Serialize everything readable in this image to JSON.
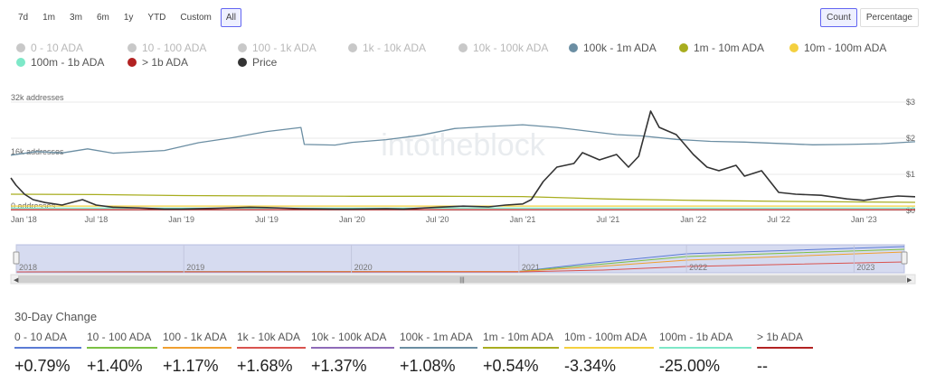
{
  "toolbar": {
    "ranges": [
      "7d",
      "1m",
      "3m",
      "6m",
      "1y",
      "YTD",
      "Custom",
      "All"
    ],
    "active_range": "All",
    "modes": [
      "Count",
      "Percentage"
    ],
    "active_mode": "Count"
  },
  "legend": [
    {
      "label": "0 - 10 ADA",
      "color": "#c8c8c8",
      "active": false
    },
    {
      "label": "10 - 100 ADA",
      "color": "#c8c8c8",
      "active": false
    },
    {
      "label": "100 - 1k ADA",
      "color": "#c8c8c8",
      "active": false
    },
    {
      "label": "1k - 10k ADA",
      "color": "#c8c8c8",
      "active": false
    },
    {
      "label": "10k - 100k ADA",
      "color": "#c8c8c8",
      "active": false
    },
    {
      "label": "100k - 1m ADA",
      "color": "#6b8ea3",
      "active": true
    },
    {
      "label": "1m - 10m ADA",
      "color": "#a8ad1f",
      "active": true
    },
    {
      "label": "10m - 100m ADA",
      "color": "#f4d03f",
      "active": true
    },
    {
      "label": "100m - 1b ADA",
      "color": "#7de8c8",
      "active": true
    },
    {
      "label": "> 1b ADA",
      "color": "#b22222",
      "active": true
    },
    {
      "label": "Price",
      "color": "#333333",
      "active": true
    }
  ],
  "watermark": "intotheblock",
  "chart_data": {
    "type": "line",
    "x_ticks": [
      "Jan '18",
      "Jul '18",
      "Jan '19",
      "Jul '19",
      "Jan '20",
      "Jul '20",
      "Jan '21",
      "Jul '21",
      "Jan '22",
      "Jul '22",
      "Jan '23"
    ],
    "y_left_ticks": [
      "32k addresses",
      "16k addresses",
      "0 addresses"
    ],
    "y_left_range": [
      0,
      32000
    ],
    "y_right_ticks": [
      "$3",
      "$2",
      "$1",
      "$0"
    ],
    "y_right_range": [
      0,
      3
    ],
    "series": [
      {
        "name": "100k - 1m ADA",
        "axis": "left",
        "color": "#6b8ea3",
        "x": [
          2018.0,
          2018.15,
          2018.3,
          2018.45,
          2018.6,
          2018.9,
          2019.1,
          2019.3,
          2019.5,
          2019.7,
          2019.72,
          2019.9,
          2020.0,
          2020.2,
          2020.4,
          2020.6,
          2020.8,
          2021.0,
          2021.2,
          2021.4,
          2021.55,
          2021.7,
          2021.9,
          2022.1,
          2022.3,
          2022.5,
          2022.7,
          2022.9,
          2023.1,
          2023.3
        ],
        "y": [
          16300,
          17400,
          17000,
          18200,
          16900,
          17700,
          20000,
          21500,
          23300,
          24500,
          19500,
          19300,
          20100,
          20900,
          22200,
          24200,
          24800,
          25300,
          24500,
          23300,
          22400,
          22000,
          21000,
          20400,
          20200,
          19800,
          19400,
          19500,
          19700,
          20300
        ]
      },
      {
        "name": "1m - 10m ADA",
        "axis": "left",
        "color": "#a8ad1f",
        "x": [
          2018.0,
          2018.5,
          2019.0,
          2019.5,
          2020.0,
          2020.5,
          2021.0,
          2021.5,
          2022.0,
          2022.5,
          2023.0,
          2023.3
        ],
        "y": [
          4800,
          4700,
          4400,
          4300,
          4200,
          4200,
          4100,
          3400,
          3000,
          2700,
          2500,
          2400
        ]
      },
      {
        "name": "10m - 100m ADA",
        "axis": "left",
        "color": "#f4d03f",
        "x": [
          2018.0,
          2023.3
        ],
        "y": [
          1300,
          1300
        ]
      },
      {
        "name": "100m - 1b ADA",
        "axis": "left",
        "color": "#7de8c8",
        "x": [
          2018.0,
          2023.3
        ],
        "y": [
          700,
          700
        ]
      },
      {
        "name": "> 1b ADA",
        "axis": "left",
        "color": "#b22222",
        "x": [
          2018.0,
          2023.3
        ],
        "y": [
          250,
          250
        ]
      },
      {
        "name": "Price",
        "axis": "right",
        "color": "#333333",
        "x": [
          2018.0,
          2018.03,
          2018.08,
          2018.13,
          2018.2,
          2018.3,
          2018.42,
          2018.5,
          2018.6,
          2018.75,
          2018.9,
          2019.0,
          2019.2,
          2019.4,
          2019.5,
          2019.7,
          2019.9,
          2020.0,
          2020.2,
          2020.3,
          2020.5,
          2020.65,
          2020.8,
          2020.9,
          2021.0,
          2021.05,
          2021.12,
          2021.2,
          2021.3,
          2021.35,
          2021.45,
          2021.55,
          2021.62,
          2021.68,
          2021.75,
          2021.8,
          2021.9,
          2022.0,
          2022.08,
          2022.15,
          2022.25,
          2022.3,
          2022.4,
          2022.5,
          2022.6,
          2022.75,
          2022.9,
          2023.0,
          2023.1,
          2023.2,
          2023.3
        ],
        "y": [
          0.9,
          0.7,
          0.45,
          0.3,
          0.22,
          0.15,
          0.3,
          0.15,
          0.09,
          0.07,
          0.04,
          0.04,
          0.06,
          0.09,
          0.08,
          0.05,
          0.04,
          0.04,
          0.05,
          0.04,
          0.09,
          0.12,
          0.1,
          0.15,
          0.18,
          0.3,
          0.8,
          1.2,
          1.3,
          1.6,
          1.4,
          1.55,
          1.2,
          1.5,
          2.75,
          2.3,
          2.1,
          1.55,
          1.2,
          1.1,
          1.25,
          0.95,
          1.1,
          0.5,
          0.45,
          0.42,
          0.32,
          0.28,
          0.35,
          0.4,
          0.38
        ]
      }
    ]
  },
  "navigator": {
    "years": [
      "2018",
      "2019",
      "2020",
      "2021",
      "2022",
      "2023"
    ],
    "handle_glyph": "|||"
  },
  "change_section": {
    "title": "30-Day Change",
    "items": [
      {
        "label": "0 - 10 ADA",
        "color": "#5b7bd5",
        "value": "+0.79%"
      },
      {
        "label": "10 - 100 ADA",
        "color": "#7bc043",
        "value": "+1.40%"
      },
      {
        "label": "100 - 1k ADA",
        "color": "#f0a030",
        "value": "+1.17%"
      },
      {
        "label": "1k - 10k ADA",
        "color": "#d9534f",
        "value": "+1.68%"
      },
      {
        "label": "10k - 100k ADA",
        "color": "#8e6bb8",
        "value": "+1.37%"
      },
      {
        "label": "100k - 1m ADA",
        "color": "#6b8ea3",
        "value": "+1.08%"
      },
      {
        "label": "1m - 10m ADA",
        "color": "#a8ad1f",
        "value": "+0.54%"
      },
      {
        "label": "10m - 100m ADA",
        "color": "#f4d03f",
        "value": "-3.34%"
      },
      {
        "label": "100m - 1b ADA",
        "color": "#7de8c8",
        "value": "-25.00%"
      },
      {
        "label": "> 1b ADA",
        "color": "#b22222",
        "value": "--"
      }
    ]
  }
}
